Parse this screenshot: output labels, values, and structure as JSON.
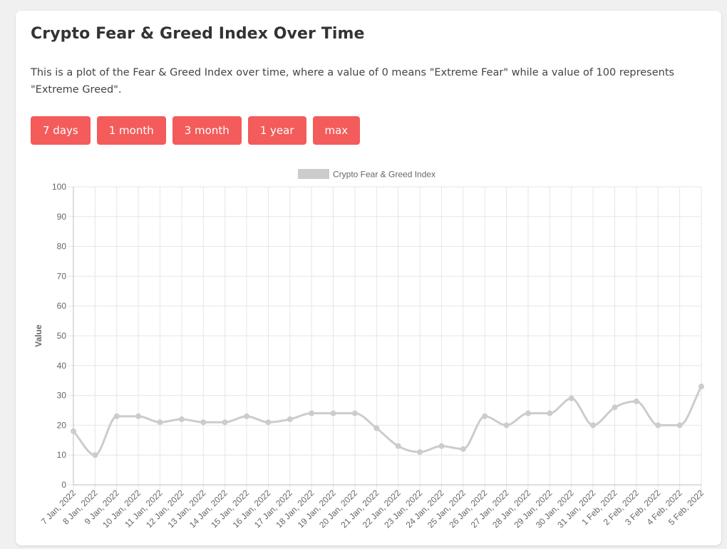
{
  "header": {
    "title": "Crypto Fear & Greed Index Over Time",
    "description": "This is a plot of the Fear & Greed Index over time, where a value of 0 means \"Extreme Fear\" while a value of 100 represents \"Extreme Greed\"."
  },
  "range_buttons": [
    {
      "label": "7 days"
    },
    {
      "label": "1 month"
    },
    {
      "label": "3 month"
    },
    {
      "label": "1 year"
    },
    {
      "label": "max"
    }
  ],
  "colors": {
    "button_bg": "#f45b5b",
    "button_text": "#ffffff",
    "series_line": "#cccccc",
    "grid": "#e6e6e6"
  },
  "chart_data": {
    "type": "line",
    "title": "",
    "xlabel": "",
    "ylabel": "Value",
    "ylim": [
      0,
      100
    ],
    "yticks": [
      0,
      10,
      20,
      30,
      40,
      50,
      60,
      70,
      80,
      90,
      100
    ],
    "grid": true,
    "legend_position": "top",
    "categories": [
      "7 Jan, 2022",
      "8 Jan, 2022",
      "9 Jan, 2022",
      "10 Jan, 2022",
      "11 Jan, 2022",
      "12 Jan, 2022",
      "13 Jan, 2022",
      "14 Jan, 2022",
      "15 Jan, 2022",
      "16 Jan, 2022",
      "17 Jan, 2022",
      "18 Jan, 2022",
      "19 Jan, 2022",
      "20 Jan, 2022",
      "21 Jan, 2022",
      "22 Jan, 2022",
      "23 Jan, 2022",
      "24 Jan, 2022",
      "25 Jan, 2022",
      "26 Jan, 2022",
      "27 Jan, 2022",
      "28 Jan, 2022",
      "29 Jan, 2022",
      "30 Jan, 2022",
      "31 Jan, 2022",
      "1 Feb, 2022",
      "2 Feb, 2022",
      "3 Feb, 2022",
      "4 Feb, 2022",
      "5 Feb, 2022"
    ],
    "series": [
      {
        "name": "Crypto Fear & Greed Index",
        "color": "#cccccc",
        "values": [
          18,
          10,
          23,
          23,
          21,
          22,
          21,
          21,
          23,
          21,
          22,
          24,
          24,
          24,
          19,
          13,
          11,
          13,
          12,
          23,
          20,
          24,
          24,
          29,
          20,
          26,
          28,
          20,
          20,
          33
        ]
      }
    ]
  }
}
